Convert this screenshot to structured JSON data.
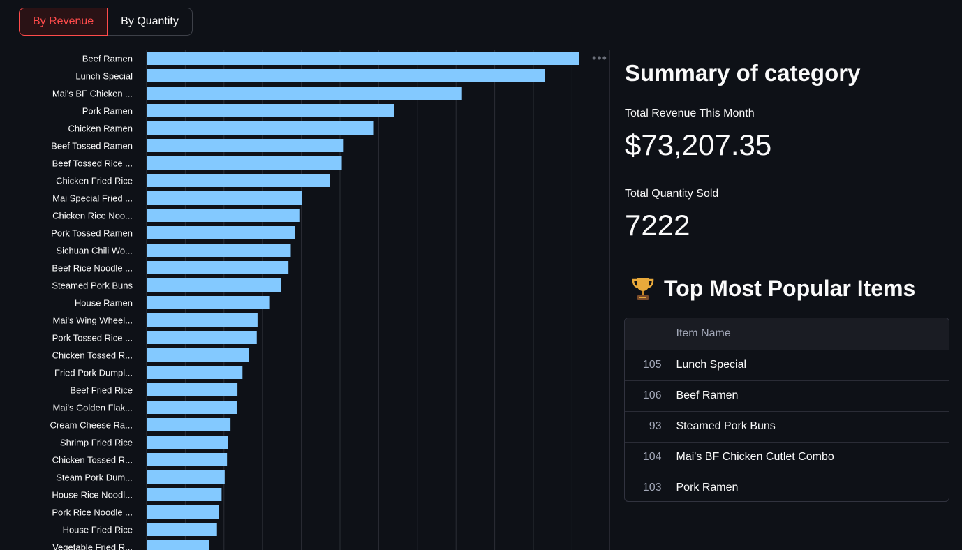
{
  "tabs": {
    "revenue_label": "By Revenue",
    "quantity_label": "By Quantity"
  },
  "chart_data": {
    "type": "bar",
    "orientation": "horizontal",
    "title": "",
    "xlabel": "",
    "ylabel": "",
    "xlim": [
      0,
      11200
    ],
    "grid": true,
    "bar_color": "#83c9ff",
    "categories": [
      "Beef Ramen",
      "Lunch Special",
      "Mai's BF Chicken ...",
      "Pork Ramen",
      "Chicken Ramen",
      "Beef Tossed Ramen",
      "Beef Tossed Rice ...",
      "Chicken Fried Rice",
      "Mai Special Fried ...",
      "Chicken Rice Noo...",
      "Pork Tossed Ramen",
      "Sichuan Chili Wo...",
      "Beef Rice Noodle ...",
      "Steamed Pork Buns",
      "House Ramen",
      "Mai's Wing Wheel...",
      "Pork Tossed Rice ...",
      "Chicken Tossed R...",
      "Fried Pork Dumpl...",
      "Beef Fried Rice",
      "Mai's Golden Flak...",
      "Cream Cheese Ra...",
      "Shrimp Fried Rice",
      "Chicken Tossed R...",
      "Steam Pork Dum...",
      "House Rice Noodl...",
      "Pork Rice Noodle ...",
      "House Fried Rice",
      "Vegetable Fried R..."
    ],
    "values": [
      11200,
      10300,
      8160,
      6400,
      5880,
      5100,
      5050,
      4750,
      4010,
      3970,
      3840,
      3730,
      3670,
      3470,
      3190,
      2870,
      2850,
      2640,
      2480,
      2350,
      2330,
      2170,
      2110,
      2080,
      2020,
      1940,
      1870,
      1820,
      1620
    ]
  },
  "summary": {
    "title": "Summary of category",
    "revenue_label": "Total Revenue This Month",
    "revenue_value": "$73,207.35",
    "quantity_label": "Total Quantity Sold",
    "quantity_value": "7222"
  },
  "popular": {
    "title": "Top Most Popular Items",
    "column_header": "Item Name",
    "rows": [
      {
        "index": "105",
        "name": "Lunch Special"
      },
      {
        "index": "106",
        "name": "Beef Ramen"
      },
      {
        "index": "93",
        "name": "Steamed Pork Buns"
      },
      {
        "index": "104",
        "name": "Mai's BF Chicken Cutlet Combo"
      },
      {
        "index": "103",
        "name": "Pork Ramen"
      }
    ]
  }
}
